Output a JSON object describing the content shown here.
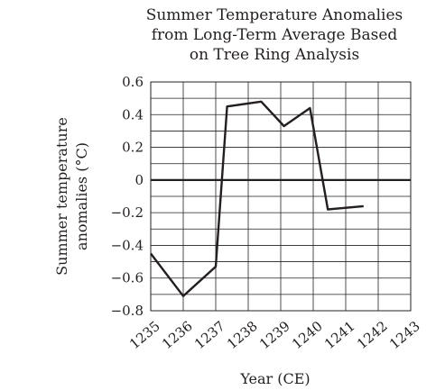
{
  "chart_data": {
    "type": "line",
    "title_lines": [
      "Summer Temperature Anomalies",
      "from Long-Term Average Based",
      "on Tree Ring Analysis"
    ],
    "xlabel": "Year (CE)",
    "ylabel_lines": [
      "Summer temperature",
      "anomalies (°C)"
    ],
    "x": [
      1235,
      1236,
      1237,
      1238,
      1239,
      1240,
      1241,
      1242,
      1243
    ],
    "x_tick_labels": [
      "1235",
      "1236",
      "1237",
      "1238",
      "1239",
      "1240",
      "1241",
      "1242",
      "1243"
    ],
    "xlim": [
      1235,
      1243
    ],
    "y_ticks": [
      0.6,
      0.4,
      0.2,
      0,
      -0.2,
      -0.4,
      -0.6,
      -0.8
    ],
    "y_tick_labels": [
      "0.6",
      "0.4",
      "0.2",
      "0",
      "−0.2",
      "−0.4",
      "−0.6",
      "−0.8"
    ],
    "ylim": [
      -0.8,
      0.6
    ],
    "grid": true,
    "series": [
      {
        "points": [
          [
            1235,
            -0.45
          ],
          [
            1236,
            -0.71
          ],
          [
            1237,
            -0.53
          ],
          [
            1237.35,
            0.45
          ],
          [
            1238.4,
            0.48
          ],
          [
            1239.1,
            0.33
          ],
          [
            1239.9,
            0.44
          ],
          [
            1240.45,
            -0.18
          ],
          [
            1241.55,
            -0.16
          ]
        ]
      }
    ],
    "colors": {
      "ink": "#231f20"
    }
  }
}
